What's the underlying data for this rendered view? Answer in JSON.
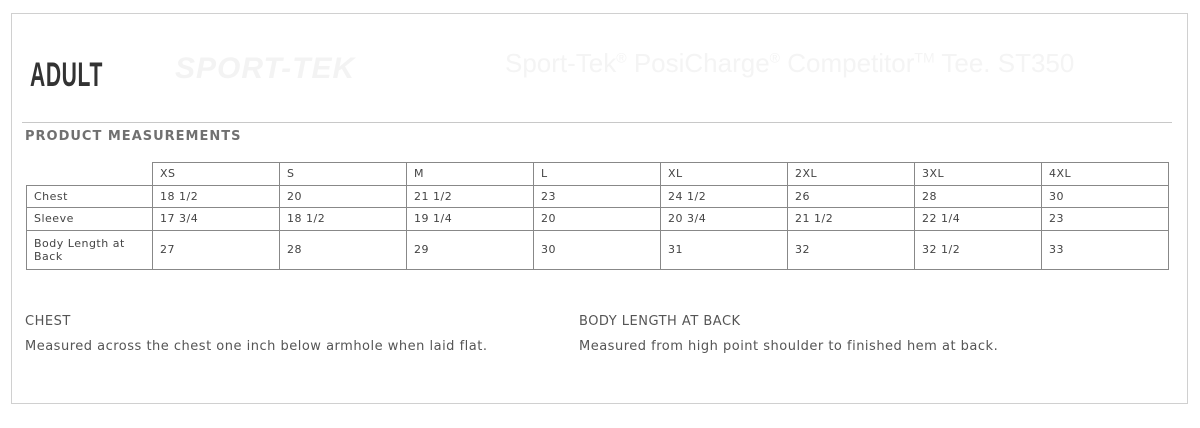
{
  "watermark": {
    "logo": "SPORT-TEK",
    "title": "Sport-Tek",
    "reg1": "®",
    "title2": " PosiCharge",
    "reg2": "®",
    "title3": " Competitor",
    "tm": "TM",
    "title4": " Tee. ST350"
  },
  "heading": "ADULT",
  "section_title": "PRODUCT MEASUREMENTS",
  "table": {
    "sizes": [
      "XS",
      "S",
      "M",
      "L",
      "XL",
      "2XL",
      "3XL",
      "4XL"
    ],
    "rows": [
      {
        "label": "Chest",
        "values": [
          "18 1/2",
          "20",
          "21 1/2",
          "23",
          "24 1/2",
          "26",
          "28",
          "30"
        ]
      },
      {
        "label": "Sleeve",
        "values": [
          "17 3/4",
          "18 1/2",
          "19 1/4",
          "20",
          "20 3/4",
          "21 1/2",
          "22 1/4",
          "23"
        ]
      },
      {
        "label": "Body Length at Back",
        "values": [
          "27",
          "28",
          "29",
          "30",
          "31",
          "32",
          "32 1/2",
          "33"
        ]
      }
    ]
  },
  "notes": [
    {
      "title": "CHEST",
      "text": "Measured across the chest one inch below armhole when laid flat."
    },
    {
      "title": "BODY LENGTH AT BACK",
      "text": "Measured from high point shoulder to finished hem at back."
    }
  ]
}
